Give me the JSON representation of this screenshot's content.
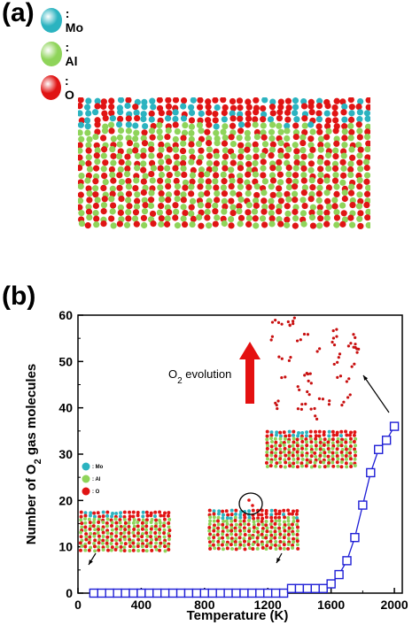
{
  "panel_a": {
    "label": "(a)",
    "legend": [
      {
        "label": ": Mo",
        "color": "#2bb3c0"
      },
      {
        "label": ": Al",
        "color": "#8fd45a"
      },
      {
        "label": ": O",
        "color": "#e01414"
      }
    ]
  },
  "panel_b": {
    "label": "(b)"
  },
  "chart_data": {
    "type": "line",
    "xlabel": "Temperature (K)",
    "ylabel": "Number of O2 gas molecules",
    "xlim": [
      0,
      2050
    ],
    "ylim": [
      0,
      60
    ],
    "xticks": [
      0,
      400,
      800,
      1200,
      1600,
      2000
    ],
    "yticks": [
      0,
      10,
      20,
      30,
      40,
      50,
      60
    ],
    "marker": "hollow-square",
    "series_color": "#1f1fd6",
    "x": [
      100,
      150,
      200,
      250,
      300,
      350,
      400,
      450,
      500,
      550,
      600,
      650,
      700,
      750,
      800,
      850,
      900,
      950,
      1000,
      1050,
      1100,
      1150,
      1200,
      1250,
      1300,
      1350,
      1400,
      1450,
      1500,
      1550,
      1600,
      1650,
      1700,
      1750,
      1800,
      1850,
      1900,
      1950,
      2000
    ],
    "y": [
      0,
      0,
      0,
      0,
      0,
      0,
      0,
      0,
      0,
      0,
      0,
      0,
      0,
      0,
      0,
      0,
      0,
      0,
      0,
      0,
      0,
      0,
      0,
      0,
      0,
      1,
      1,
      1,
      1,
      1,
      2,
      4,
      7,
      12,
      19,
      26,
      31,
      33,
      36
    ],
    "annotation": "O2 evolution",
    "inset_legend": [
      ": Mo",
      ": Al",
      ": O"
    ]
  }
}
